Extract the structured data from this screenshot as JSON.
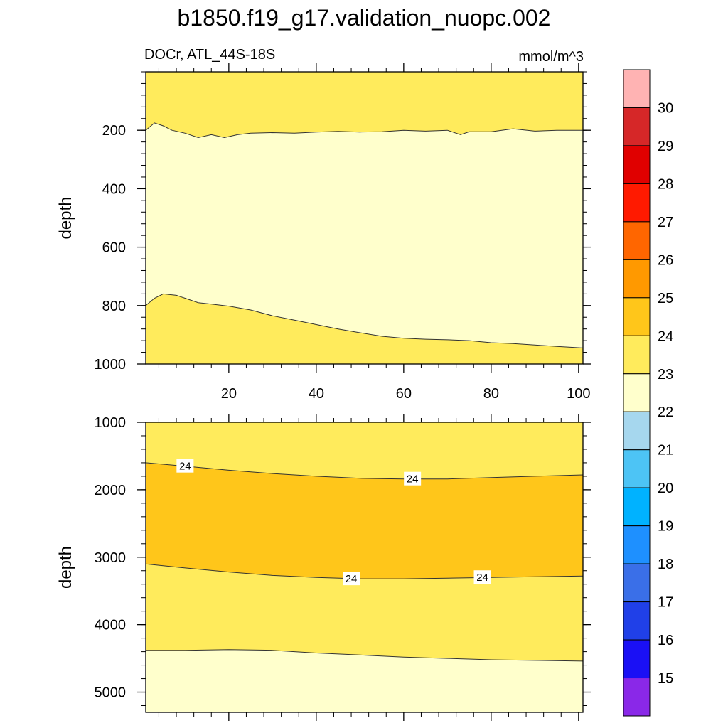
{
  "title": "b1850.f19_g17.validation_nuopc.002",
  "subtitle_left": "DOCr, ATL_44S-18S",
  "subtitle_right": "mmol/m^3",
  "chart_data": [
    {
      "type": "contour",
      "panel": "upper",
      "xlabel": "",
      "ylabel": "depth",
      "xlim": [
        1,
        101
      ],
      "ylim": [
        1000,
        0
      ],
      "x_ticks": [
        20,
        40,
        60,
        80,
        100
      ],
      "y_ticks": [
        200,
        400,
        600,
        800,
        1000
      ],
      "contour_lines": [
        {
          "level": 23,
          "x": [
            1,
            3,
            5,
            7,
            10,
            13,
            16,
            19,
            22,
            25,
            30,
            35,
            40,
            45,
            50,
            55,
            60,
            65,
            70,
            73,
            75,
            80,
            85,
            90,
            95,
            101
          ],
          "y": [
            200,
            175,
            185,
            200,
            210,
            225,
            215,
            225,
            215,
            210,
            208,
            210,
            206,
            204,
            206,
            205,
            200,
            203,
            200,
            215,
            205,
            205,
            195,
            203,
            200,
            200
          ]
        },
        {
          "level": 23,
          "x": [
            1,
            3,
            5,
            8,
            10,
            13,
            16,
            20,
            25,
            30,
            35,
            40,
            45,
            50,
            55,
            60,
            65,
            70,
            75,
            80,
            85,
            90,
            95,
            101
          ],
          "y": [
            800,
            775,
            760,
            765,
            775,
            790,
            795,
            802,
            815,
            835,
            850,
            865,
            880,
            893,
            905,
            912,
            915,
            917,
            920,
            927,
            930,
            935,
            940,
            945
          ]
        }
      ],
      "bands_top_to_bottom": [
        "23-24",
        "22-23",
        "23-24"
      ]
    },
    {
      "type": "contour",
      "panel": "lower",
      "xlabel": "",
      "ylabel": "depth",
      "xlim": [
        1,
        101
      ],
      "ylim": [
        5300,
        1000
      ],
      "y_ticks": [
        1000,
        2000,
        3000,
        4000,
        5000
      ],
      "contour_lines": [
        {
          "level": 24,
          "x": [
            1,
            10,
            20,
            30,
            40,
            50,
            60,
            70,
            80,
            90,
            101
          ],
          "y": [
            1600,
            1650,
            1710,
            1760,
            1800,
            1830,
            1840,
            1840,
            1820,
            1800,
            1780
          ]
        },
        {
          "level": 24,
          "x": [
            1,
            10,
            20,
            30,
            40,
            50,
            60,
            70,
            80,
            90,
            101
          ],
          "y": [
            3100,
            3160,
            3220,
            3270,
            3300,
            3320,
            3320,
            3310,
            3300,
            3290,
            3280
          ]
        },
        {
          "level": 23,
          "x": [
            1,
            10,
            20,
            30,
            40,
            50,
            60,
            70,
            80,
            90,
            101
          ],
          "y": [
            4380,
            4380,
            4370,
            4380,
            4420,
            4450,
            4480,
            4500,
            4520,
            4530,
            4540
          ]
        }
      ],
      "contour_labels": [
        {
          "text": "24",
          "x": 10,
          "y": 1650
        },
        {
          "text": "24",
          "x": 62,
          "y": 1840
        },
        {
          "text": "24",
          "x": 48,
          "y": 3320
        },
        {
          "text": "24",
          "x": 78,
          "y": 3300
        }
      ],
      "bands_top_to_bottom": [
        "23-24",
        "24-25",
        "23-24",
        "22-23"
      ]
    }
  ],
  "colorbar": {
    "colors_top_to_bottom": [
      "#FFB3B3",
      "#D62728",
      "#E00000",
      "#FF1A00",
      "#FF6600",
      "#FF9900",
      "#FFC61A",
      "#FFEB5C",
      "#FFFFCC",
      "#A6D7EE",
      "#4DC4F5",
      "#00B2FF",
      "#1E90FF",
      "#3A6FE8",
      "#2040E8",
      "#1A10F5",
      "#8A28E8"
    ],
    "labels_top_to_bottom": [
      "30",
      "29",
      "28",
      "27",
      "26",
      "25",
      "24",
      "23",
      "22",
      "21",
      "20",
      "19",
      "18",
      "17",
      "16",
      "15"
    ]
  },
  "band_colors": {
    "22-23": "#FFFFCC",
    "23-24": "#FFEB5C",
    "24-25": "#FFC61A"
  }
}
